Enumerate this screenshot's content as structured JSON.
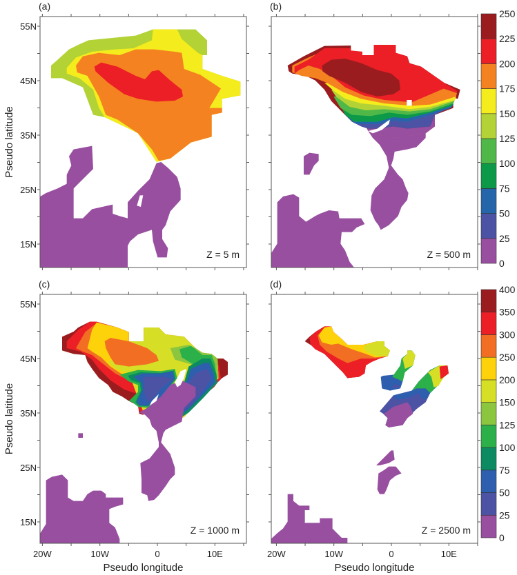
{
  "chart_data": {
    "type": "heatmap",
    "subtype": "filled contour maps",
    "xlabel": "Pseudo longitude",
    "ylabel": "Pseudo latitude",
    "x_ticks": [
      {
        "value": -20,
        "label": "20W"
      },
      {
        "value": -10,
        "label": "10W"
      },
      {
        "value": 0,
        "label": "0"
      },
      {
        "value": 10,
        "label": "10E"
      }
    ],
    "y_ticks": [
      {
        "value": 55,
        "label": "55N"
      },
      {
        "value": 45,
        "label": "45N"
      },
      {
        "value": 35,
        "label": "35N"
      },
      {
        "value": 25,
        "label": "25N"
      },
      {
        "value": 15,
        "label": "15N"
      }
    ],
    "xlim": [
      -20.5,
      15.5
    ],
    "ylim": [
      10.6,
      56.8
    ],
    "panels": [
      {
        "label": "(a)",
        "annotation": "Z = 5 m",
        "colorbar": 0
      },
      {
        "label": "(b)",
        "annotation": "Z = 500 m",
        "colorbar": 0
      },
      {
        "label": "(c)",
        "annotation": "Z = 1000 m",
        "colorbar": 1
      },
      {
        "label": "(d)",
        "annotation": "Z = 2500 m",
        "colorbar": 1
      }
    ],
    "colorbars": [
      {
        "levels": [
          "0",
          "25",
          "50",
          "75",
          "100",
          "125",
          "150",
          "175",
          "200",
          "225",
          "250"
        ],
        "colors": [
          "#984fa0",
          "#4d53a4",
          "#2566ab",
          "#0c9a48",
          "#4fb848",
          "#b2d235",
          "#f4ec1d",
          "#f58220",
          "#ec1f26",
          "#9a1c1f"
        ]
      },
      {
        "levels": [
          "0",
          "25",
          "50",
          "75",
          "100",
          "125",
          "150",
          "200",
          "250",
          "300",
          "350",
          "400"
        ],
        "colors": [
          "#984fa0",
          "#4d53a4",
          "#2d5fae",
          "#0c8a62",
          "#2bb04a",
          "#8cc63f",
          "#d6df26",
          "#fdd20a",
          "#f26e22",
          "#ec1f26",
          "#9a1c1f"
        ]
      }
    ]
  }
}
